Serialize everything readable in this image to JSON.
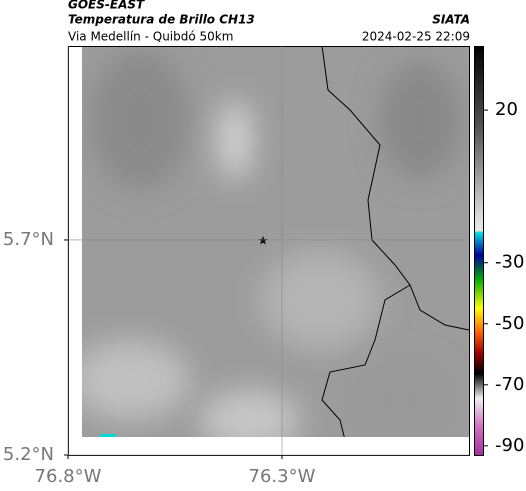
{
  "chart_data": {
    "type": "map",
    "title": "GOES-EAST",
    "subtitle": "Temperatura de Brillo CH13",
    "route": "Via Medellín - Quibdó 50km",
    "source": "SIATA",
    "timestamp": "2024-02-25 22:09",
    "xlim": [
      -76.8,
      -75.863
    ],
    "ylim": [
      5.2,
      6.151
    ],
    "xticks": [
      {
        "value": -76.8,
        "label": "76.8°W"
      },
      {
        "value": -76.3,
        "label": "76.3°W"
      }
    ],
    "yticks": [
      {
        "value": 5.2,
        "label": "5.2°N"
      },
      {
        "value": 5.7,
        "label": "5.7°N"
      }
    ],
    "grid": true,
    "colorbar": {
      "lim": [
        -93,
        41
      ],
      "ticks": [
        20,
        -30,
        -50,
        -70,
        -90
      ]
    }
  }
}
